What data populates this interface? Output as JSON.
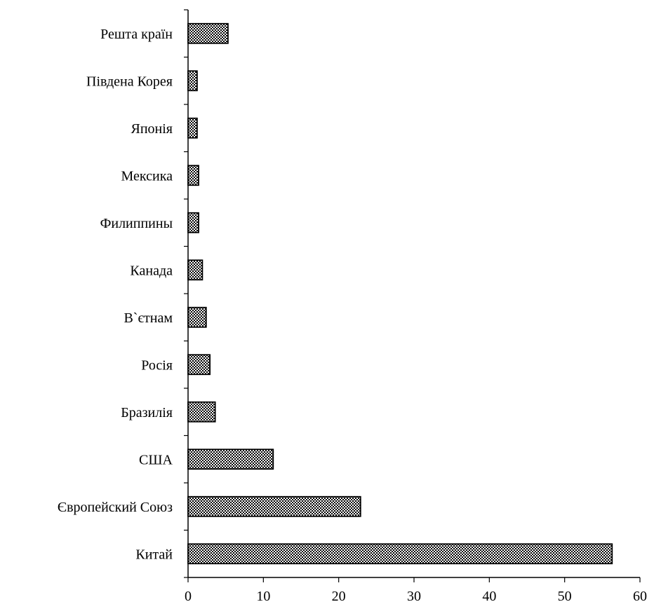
{
  "chart_data": {
    "type": "bar",
    "orientation": "horizontal",
    "categories": [
      "Китай",
      "Європейский Союз",
      "США",
      "Бразилія",
      "Росія",
      "В`єтнам",
      "Канада",
      "Филиппины",
      "Мексика",
      "Японія",
      "Південа Корея",
      "Решта країн"
    ],
    "values": [
      56.3,
      22.9,
      11.3,
      3.6,
      2.9,
      2.4,
      1.9,
      1.4,
      1.4,
      1.2,
      1.2,
      5.3
    ],
    "xlim": [
      0,
      60
    ],
    "xticks": [
      0,
      10,
      20,
      30,
      40,
      50,
      60
    ],
    "xtick_labels": [
      "0",
      "10",
      "20",
      "30",
      "40",
      "50",
      "60"
    ],
    "title": "",
    "xlabel": "",
    "ylabel": "",
    "grid": false,
    "bar_pattern": "checkered black-and-white fill with black outline",
    "colors": {
      "bar_dark": "#000000",
      "bar_light": "#ffffff",
      "axis": "#000000"
    }
  }
}
